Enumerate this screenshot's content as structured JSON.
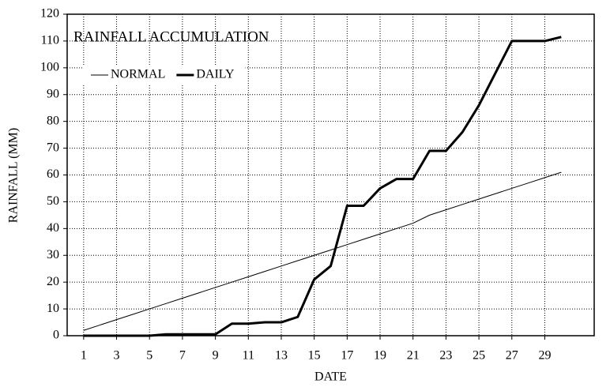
{
  "chart_data": {
    "type": "line",
    "title": "RAINFALL ACCUMULATION",
    "x_label": "DATE",
    "y_label": "RAINFALL (MM)",
    "x": [
      1,
      2,
      3,
      4,
      5,
      6,
      7,
      8,
      9,
      10,
      11,
      12,
      13,
      14,
      15,
      16,
      17,
      18,
      19,
      20,
      21,
      22,
      23,
      24,
      25,
      26,
      27,
      28,
      29,
      30
    ],
    "series": [
      {
        "name": "NORMAL",
        "color": "#000000",
        "linewidth": 1,
        "values": [
          2,
          4,
          6,
          8,
          10,
          12,
          14,
          16,
          18,
          20,
          22,
          24,
          26,
          28,
          30,
          32,
          34,
          36,
          38,
          40,
          42,
          45,
          47,
          49,
          51,
          53,
          55,
          57,
          59,
          61
        ]
      },
      {
        "name": "DAILY",
        "color": "#000000",
        "linewidth": 3,
        "values": [
          0,
          0,
          0,
          0,
          0,
          0.5,
          0.5,
          0.5,
          0.5,
          4.5,
          4.5,
          5,
          5,
          7,
          21,
          26,
          48.5,
          48.5,
          55,
          58.5,
          58.5,
          69,
          69,
          76,
          86,
          98,
          110,
          110,
          110,
          111.5
        ]
      }
    ],
    "xlim": [
      0,
      32
    ],
    "xticks": [
      1,
      3,
      5,
      7,
      9,
      11,
      13,
      15,
      17,
      19,
      21,
      23,
      25,
      27,
      29
    ],
    "ylim": [
      0,
      120
    ],
    "yticks": [
      0,
      10,
      20,
      30,
      40,
      50,
      60,
      70,
      80,
      90,
      100,
      110,
      120
    ],
    "grid": true,
    "legend": "upper left"
  }
}
